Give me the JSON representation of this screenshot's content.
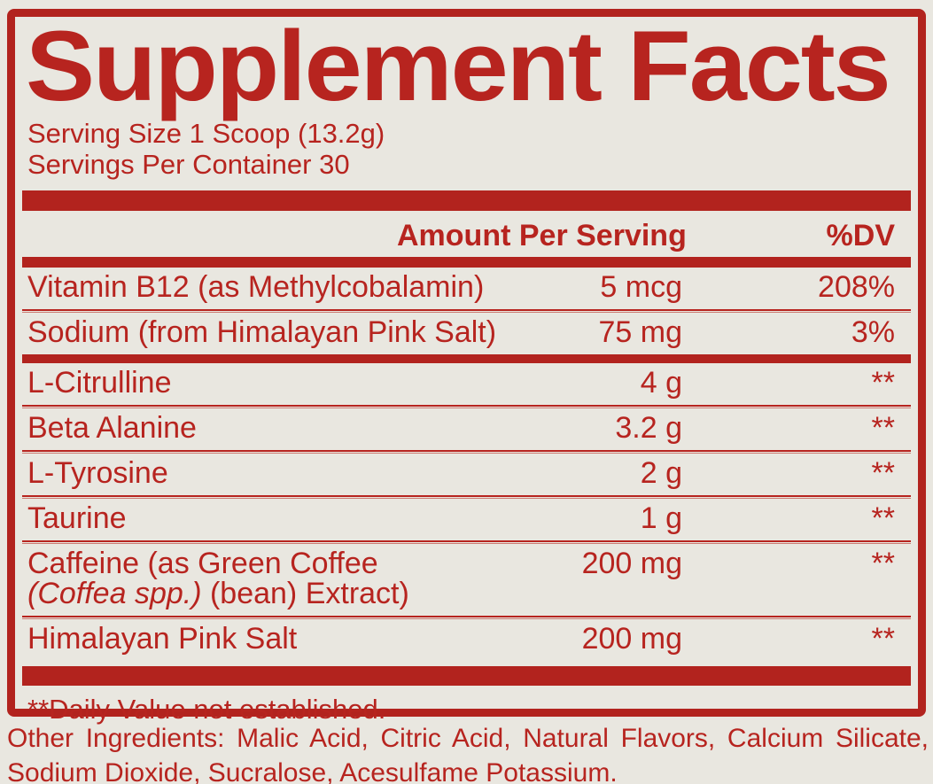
{
  "colors": {
    "red_text": "#b7241f",
    "red_bar": "#b2231e",
    "background": "#e9e7e0"
  },
  "panel": {
    "title": "Supplement Facts",
    "serving_size": "Serving Size 1 Scoop (13.2g)",
    "servings_per_container": "Servings Per Container 30",
    "col_amount": "Amount Per Serving",
    "col_dv": "%DV",
    "rows_dv": [
      {
        "name": "Vitamin B12 (as Methylcobalamin)",
        "amount": "5 mcg",
        "dv": "208%"
      },
      {
        "name": "Sodium (from Himalayan Pink Salt)",
        "amount": "75 mg",
        "dv": "3%"
      }
    ],
    "rows_nodv": [
      {
        "name": "L-Citrulline",
        "amount": "4 g",
        "dv": "**"
      },
      {
        "name": "Beta Alanine",
        "amount": "3.2 g",
        "dv": "**"
      },
      {
        "name": "L-Tyrosine",
        "amount": "2 g",
        "dv": "**"
      },
      {
        "name": "Taurine",
        "amount": "1 g",
        "dv": "**"
      },
      {
        "name_line1": "Caffeine (as Green Coffee",
        "name_line2_italic": "(Coffea spp.)",
        "name_line2_rest": " (bean) Extract)",
        "amount": "200 mg",
        "dv": "**"
      },
      {
        "name": "Himalayan Pink Salt",
        "amount": "200 mg",
        "dv": "**"
      }
    ],
    "footnote": "**Daily Value not established."
  },
  "other_ingredients": "Other Ingredients: Malic Acid, Citric Acid, Natural Flavors, Calcium Silicate, Sodium Dioxide, Sucralose, Acesulfame Potassium."
}
